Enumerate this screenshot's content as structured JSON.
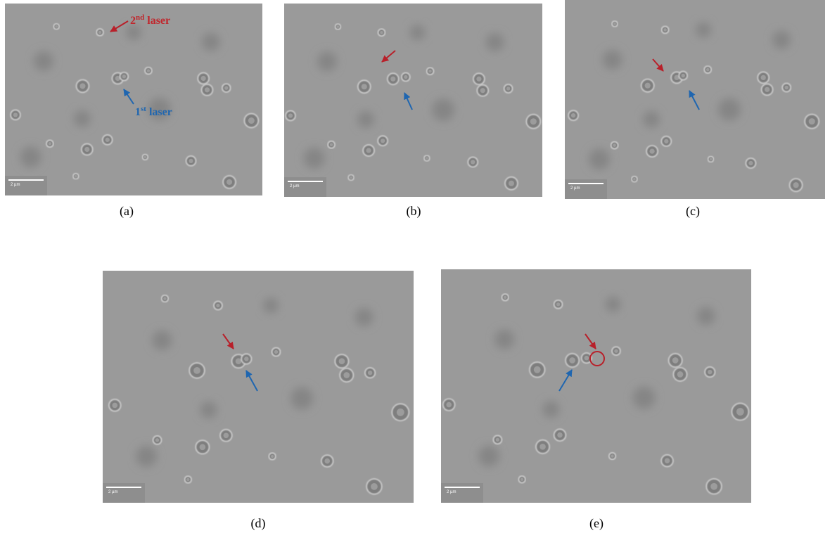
{
  "panels": [
    {
      "label": "(a)",
      "scale_bar": "2 µm"
    },
    {
      "label": "(b)",
      "scale_bar": "2 µm"
    },
    {
      "label": "(c)",
      "scale_bar": "2 µm"
    },
    {
      "label": "(d)",
      "scale_bar": "2 µm"
    },
    {
      "label": "(e)",
      "scale_bar": "2 µm"
    }
  ],
  "annotations": {
    "second_laser": {
      "number": "2",
      "suffix": "nd",
      "word": "laser"
    },
    "first_laser": {
      "number": "1",
      "suffix": "st",
      "word": "laser"
    }
  }
}
